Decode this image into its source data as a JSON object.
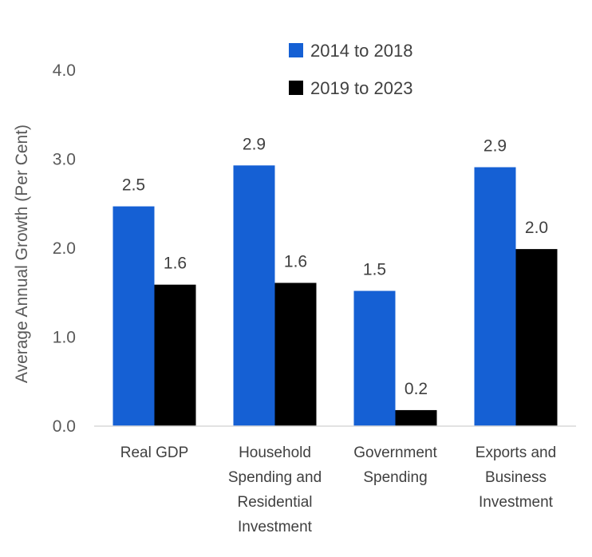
{
  "chart_data": {
    "type": "bar",
    "title": "",
    "ylabel": "Average Annual Growth (Per Cent)",
    "xlabel": "",
    "ylim": [
      0,
      4.0
    ],
    "yticks": [
      "0.0",
      "1.0",
      "2.0",
      "3.0",
      "4.0"
    ],
    "grid": false,
    "legend_position": "top-right",
    "categories": [
      [
        "Real GDP"
      ],
      [
        "Household",
        "Spending and",
        "Residential",
        "Investment"
      ],
      [
        "Government",
        "Spending"
      ],
      [
        "Exports and",
        "Business",
        "Investment"
      ]
    ],
    "series": [
      {
        "name": "2014 to 2018",
        "color": "#1560d4",
        "values": [
          2.47,
          2.93,
          1.52,
          2.91
        ],
        "labels": [
          "2.5",
          "2.9",
          "1.5",
          "2.9"
        ]
      },
      {
        "name": "2019 to 2023",
        "color": "#000000",
        "values": [
          1.59,
          1.61,
          0.18,
          1.99
        ],
        "labels": [
          "1.6",
          "1.6",
          "0.2",
          "2.0"
        ]
      }
    ]
  }
}
